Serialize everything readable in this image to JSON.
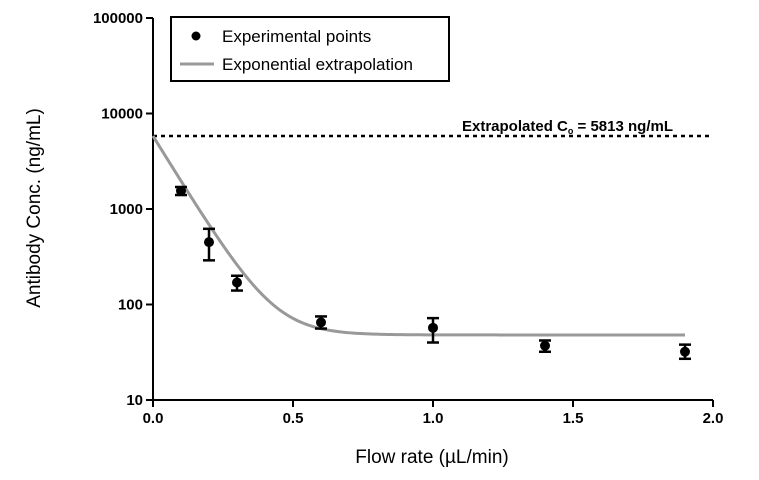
{
  "chart_data": {
    "type": "scatter",
    "x_scale": "linear",
    "y_scale": "log",
    "xlim": [
      0,
      2.0
    ],
    "ylim": [
      10,
      100000
    ],
    "xlabel": "Flow rate (µL/min)",
    "ylabel": "Antibody Conc. (ng/mL)",
    "x_ticks": [
      {
        "value": 0.0,
        "label": "0.0"
      },
      {
        "value": 0.5,
        "label": "0.5"
      },
      {
        "value": 1.0,
        "label": "1.0"
      },
      {
        "value": 1.5,
        "label": "1.5"
      },
      {
        "value": 2.0,
        "label": "2.0"
      }
    ],
    "y_ticks": [
      {
        "value": 10,
        "label": "10"
      },
      {
        "value": 100,
        "label": "100"
      },
      {
        "value": 1000,
        "label": "1000"
      },
      {
        "value": 10000,
        "label": "10000"
      },
      {
        "value": 100000,
        "label": "100000"
      }
    ],
    "grid": false,
    "legend": {
      "placement": "top-left",
      "entries": [
        {
          "label": "Experimental points",
          "marker": "circle",
          "color": "#000000"
        },
        {
          "label": "Exponential extrapolation",
          "marker": "line",
          "color": "#999999"
        }
      ]
    },
    "series": [
      {
        "name": "Experimental points",
        "kind": "points",
        "color": "#000000",
        "x": [
          0.1,
          0.2,
          0.3,
          0.6,
          1.0,
          1.4,
          1.9
        ],
        "y": [
          1550,
          450,
          170,
          65,
          57,
          37,
          32
        ],
        "err_low": [
          1400,
          290,
          140,
          56,
          40,
          32,
          27
        ],
        "err_high": [
          1700,
          620,
          200,
          75,
          72,
          42,
          38
        ]
      },
      {
        "name": "Exponential extrapolation",
        "kind": "curve",
        "color": "#999999",
        "model": {
          "plateau": 48,
          "y0": 5813,
          "rate": 11
        },
        "x_range": [
          0,
          1.9
        ]
      }
    ],
    "annotations": [
      {
        "type": "hline",
        "y": 5813,
        "style": "dotted",
        "color": "#000000",
        "text_prefix": "Extrapolated C",
        "text_subscript": "o",
        "text_suffix": " = 5813 ng/mL"
      }
    ]
  }
}
